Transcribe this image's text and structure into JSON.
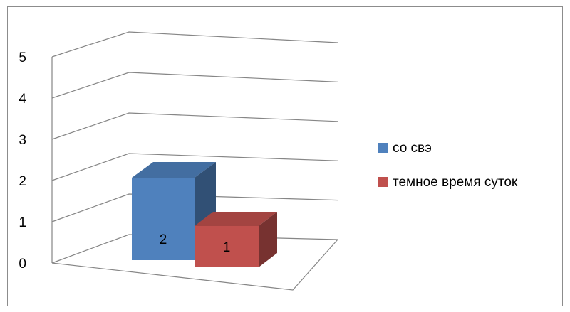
{
  "chart_data": {
    "type": "bar",
    "style": "3d-column",
    "categories": [
      ""
    ],
    "series": [
      {
        "name": "со свэ",
        "values": [
          2
        ],
        "color": "#4f81bd"
      },
      {
        "name": "темное время суток",
        "values": [
          1
        ],
        "color": "#c0504d"
      }
    ],
    "ylim": [
      0,
      5
    ],
    "yticks": [
      "0",
      "1",
      "2",
      "3",
      "4",
      "5"
    ],
    "grid": true,
    "legend": "right",
    "data_labels": [
      "2",
      "1"
    ]
  }
}
